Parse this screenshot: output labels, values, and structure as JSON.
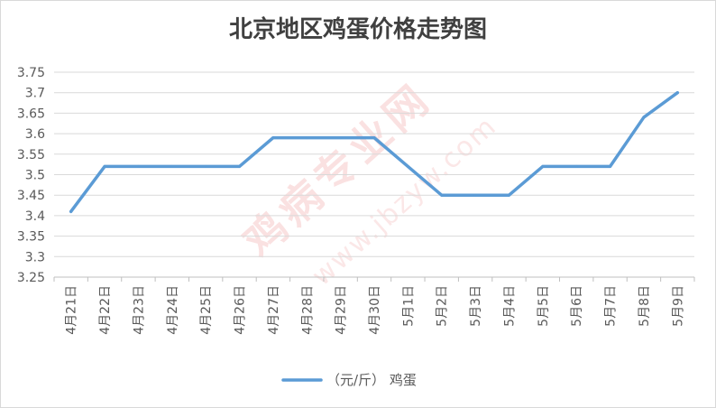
{
  "chart_data": {
    "type": "line",
    "title": "北京地区鸡蛋价格走势图",
    "categories": [
      "4月21日",
      "4月22日",
      "4月23日",
      "4月24日",
      "4月25日",
      "4月26日",
      "4月27日",
      "4月28日",
      "4月29日",
      "4月30日",
      "5月1日",
      "5月2日",
      "5月3日",
      "5月4日",
      "5月5日",
      "5月6日",
      "5月7日",
      "5月8日",
      "5月9日"
    ],
    "series": [
      {
        "name": "（元/斤） 鸡蛋",
        "color": "#5B9BD5",
        "values": [
          3.41,
          3.52,
          3.52,
          3.52,
          3.52,
          3.52,
          3.59,
          3.59,
          3.59,
          3.59,
          3.52,
          3.45,
          3.45,
          3.45,
          3.52,
          3.52,
          3.52,
          3.64,
          3.7
        ]
      }
    ],
    "ylim": [
      3.25,
      3.75
    ],
    "yticks": [
      "3.25",
      "3.3",
      "3.35",
      "3.4",
      "3.45",
      "3.5",
      "3.55",
      "3.6",
      "3.65",
      "3.7",
      "3.75"
    ],
    "xlabel": "",
    "ylabel": "",
    "grid": true,
    "legend": "bottom"
  },
  "watermark": {
    "text": "鸡病专业网",
    "url": "www.jbzyw.com"
  },
  "colors": {
    "gridline": "#D9D9D9",
    "axis": "#BFBFBF",
    "border": "#D9D9D9"
  }
}
